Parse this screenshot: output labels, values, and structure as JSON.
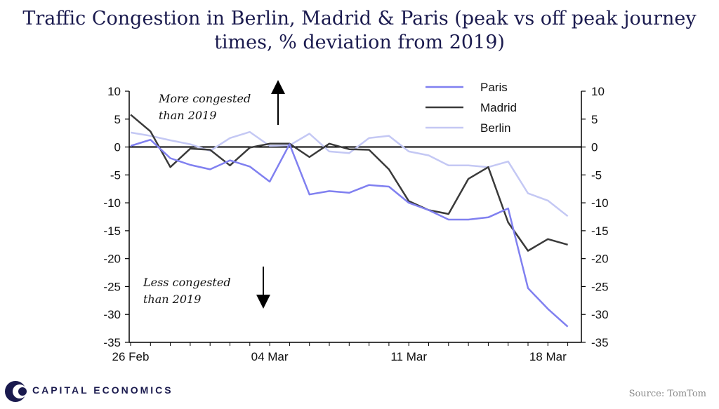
{
  "header": {
    "title_line1": "Traffic Congestion in Berlin, Madrid & Paris (peak vs off peak journey",
    "title_line2": "times, % deviation from 2019)"
  },
  "footer": {
    "brand": "CAPITAL ECONOMICS",
    "source": "Source: TomTom"
  },
  "annotations": {
    "up_line1": "More congested",
    "up_line2": "than 2019",
    "down_line1": "Less congested",
    "down_line2": "than 2019"
  },
  "colors": {
    "paris": "#8080f0",
    "madrid": "#3a3a3a",
    "berlin": "#c4c8f4",
    "title": "#1a1a4e"
  },
  "chart_data": {
    "type": "line",
    "title": "Traffic Congestion in Berlin, Madrid & Paris (peak vs off peak journey times, % deviation from 2019)",
    "xlabel": "",
    "ylabel": "",
    "x": [
      "26 Feb",
      "27 Feb",
      "28 Feb",
      "29 Feb",
      "01 Mar",
      "02 Mar",
      "03 Mar",
      "04 Mar",
      "05 Mar",
      "06 Mar",
      "07 Mar",
      "08 Mar",
      "09 Mar",
      "10 Mar",
      "11 Mar",
      "12 Mar",
      "13 Mar",
      "14 Mar",
      "15 Mar",
      "16 Mar",
      "17 Mar",
      "18 Mar",
      "19 Mar"
    ],
    "x_tick_labels": [
      "26 Feb",
      "04 Mar",
      "11 Mar",
      "18 Mar"
    ],
    "ylim": [
      -35,
      10
    ],
    "y_ticks": [
      10,
      5,
      0,
      -5,
      -10,
      -15,
      -20,
      -25,
      -30,
      -35
    ],
    "legend_position": "top-right",
    "series": [
      {
        "name": "Paris",
        "values": [
          0.2,
          1.3,
          -2.0,
          -3.2,
          -4.0,
          -2.4,
          -3.5,
          -6.2,
          0.5,
          -8.5,
          -7.9,
          -8.2,
          -6.8,
          -7.1,
          -10.0,
          -11.3,
          -13.0,
          -13.0,
          -12.6,
          -11.0,
          -25.3,
          -29.0,
          -32.2
        ]
      },
      {
        "name": "Madrid",
        "values": [
          5.8,
          2.8,
          -3.6,
          -0.3,
          -0.5,
          -3.3,
          -0.1,
          0.6,
          0.6,
          -1.8,
          0.6,
          -0.4,
          -0.5,
          -4.0,
          -9.7,
          -11.3,
          -12.0,
          -5.7,
          -3.6,
          -13.5,
          -18.6,
          -16.5,
          -17.5
        ]
      },
      {
        "name": "Berlin",
        "values": [
          2.6,
          2.0,
          1.2,
          0.5,
          -0.7,
          1.6,
          2.7,
          0.2,
          0.3,
          2.4,
          -0.8,
          -1.1,
          1.6,
          2.0,
          -0.8,
          -1.5,
          -3.3,
          -3.3,
          -3.6,
          -2.6,
          -8.3,
          -9.6,
          -12.4
        ]
      }
    ]
  }
}
